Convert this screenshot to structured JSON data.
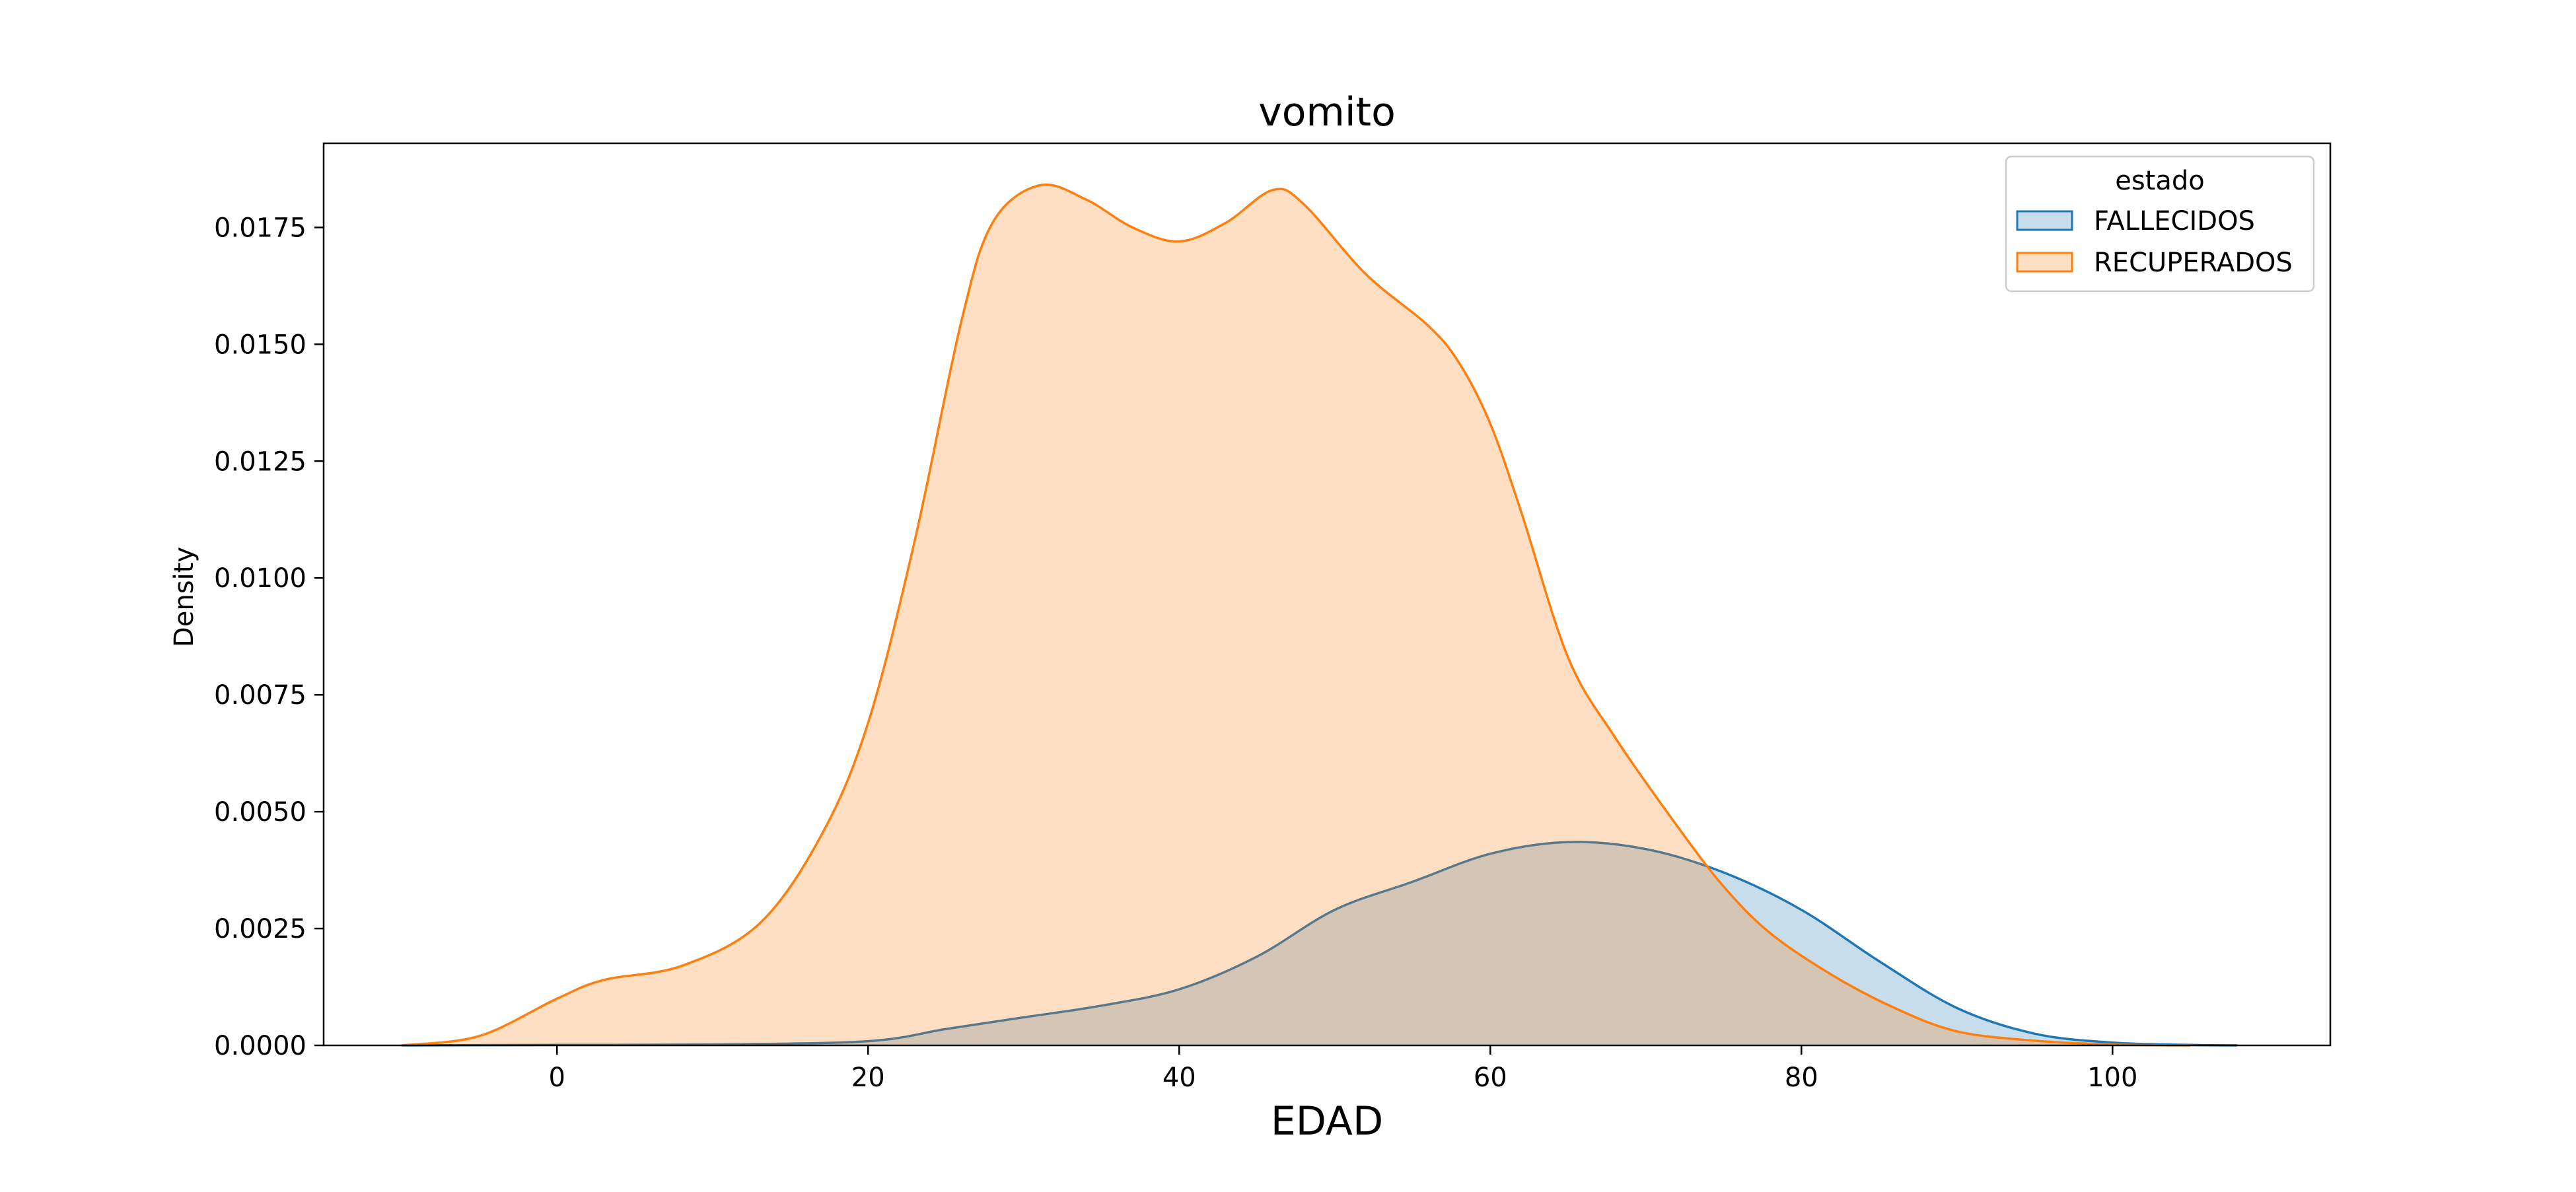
{
  "chart_data": {
    "type": "area",
    "title": "vomito",
    "xlabel": "EDAD",
    "ylabel": "Density",
    "xlim": [
      -15,
      114
    ],
    "ylim": [
      0,
      0.0193
    ],
    "xticks": [
      0,
      20,
      40,
      60,
      80,
      100
    ],
    "yticks": [
      0,
      0.0025,
      0.005,
      0.0075,
      0.01,
      0.0125,
      0.015,
      0.0175
    ],
    "ytick_labels": [
      "0.0000",
      "0.0025",
      "0.0050",
      "0.0075",
      "0.0100",
      "0.0125",
      "0.0150",
      "0.0175"
    ],
    "grid": false,
    "legend": {
      "title": "estado",
      "placement": "top-right"
    },
    "series": [
      {
        "name": "FALLECIDOS",
        "color": "#1f77b4",
        "fill_opacity": 0.25,
        "x": [
          -10,
          0,
          10,
          20,
          25,
          30,
          35,
          40,
          45,
          50,
          55,
          60,
          65,
          70,
          75,
          80,
          85,
          90,
          95,
          100,
          105,
          108
        ],
        "y": [
          0,
          1e-05,
          2e-05,
          9e-05,
          0.00035,
          0.0006,
          0.00085,
          0.0012,
          0.0019,
          0.0029,
          0.0035,
          0.0041,
          0.00435,
          0.0042,
          0.0037,
          0.0029,
          0.0018,
          0.0008,
          0.00025,
          6e-05,
          1e-05,
          0
        ]
      },
      {
        "name": "RECUPERADOS",
        "color": "#ff7f0e",
        "fill_opacity": 0.25,
        "x": [
          -10,
          -5,
          0,
          3,
          8,
          13,
          17,
          20,
          23,
          26,
          28,
          31,
          34,
          37,
          40,
          43,
          46,
          48,
          52,
          56,
          58,
          60,
          62,
          65,
          68,
          72,
          75,
          78,
          82,
          86,
          90,
          95,
          100,
          105
        ],
        "y": [
          0,
          0.0002,
          0.001,
          0.0014,
          0.0017,
          0.0026,
          0.0045,
          0.0069,
          0.0108,
          0.0155,
          0.0176,
          0.0184,
          0.0181,
          0.0175,
          0.0172,
          0.0176,
          0.0183,
          0.018,
          0.0165,
          0.0154,
          0.0146,
          0.0133,
          0.0114,
          0.0083,
          0.0066,
          0.0047,
          0.0034,
          0.0024,
          0.0015,
          0.0008,
          0.0003,
          0.0001,
          2e-05,
          0
        ]
      }
    ]
  }
}
